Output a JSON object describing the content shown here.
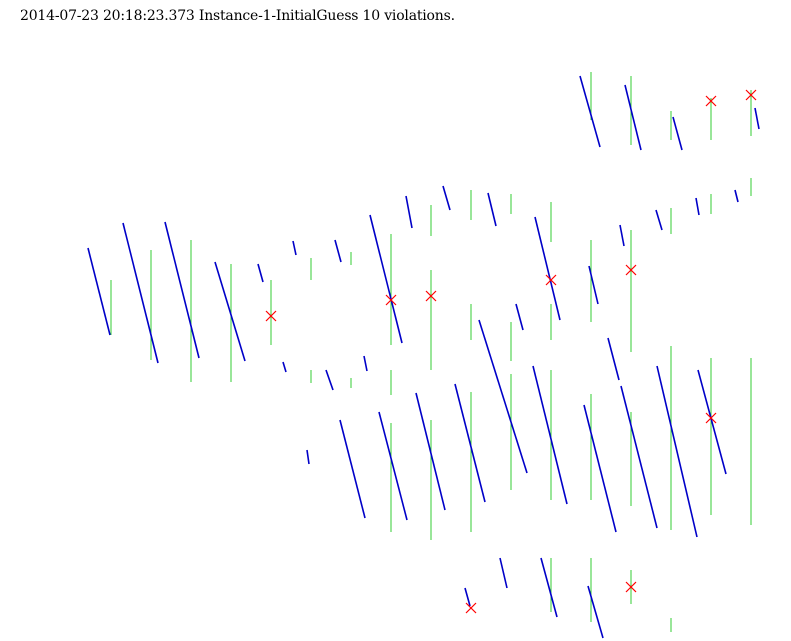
{
  "header": {
    "timestamp": "2014-07-23 20:18:23.373",
    "instance": "Instance-1-InitialGuess",
    "violation_count": 10,
    "violations_word": "violations.",
    "text": "2014-07-23 20:18:23.373 Instance-1-InitialGuess 10 violations."
  },
  "colors": {
    "blue_segment": "#0000c8",
    "green_segment": "#33cc33",
    "violation_mark": "#ff0000"
  }
}
